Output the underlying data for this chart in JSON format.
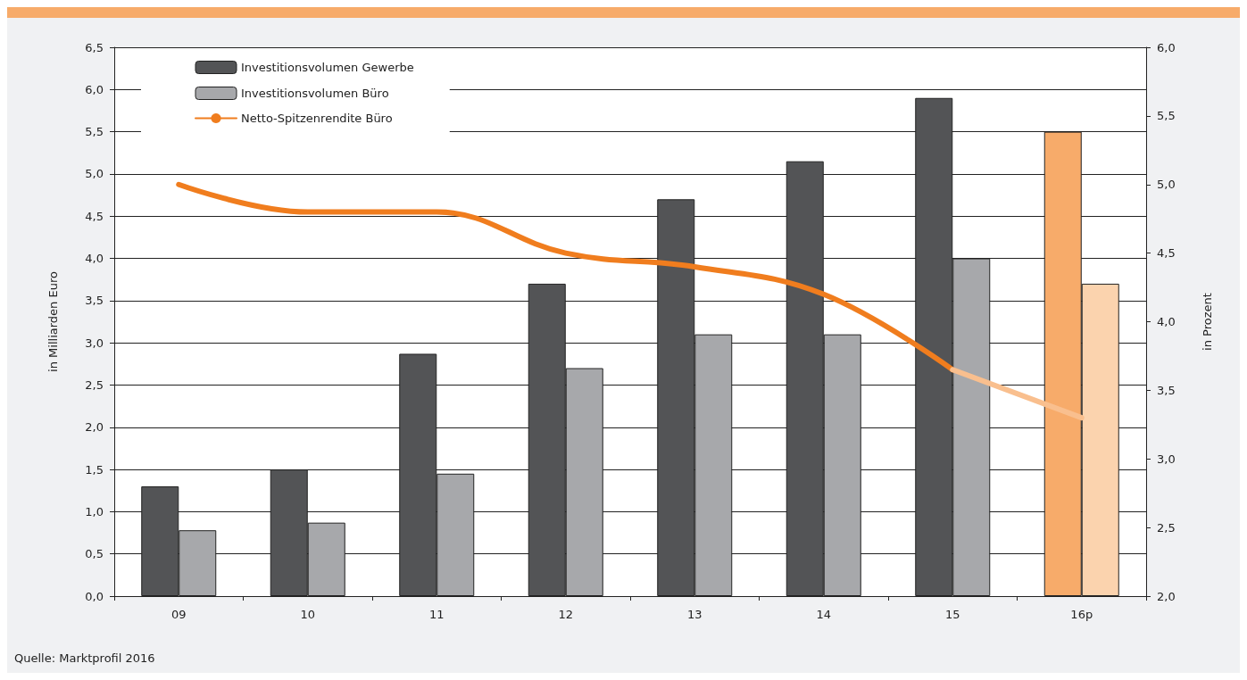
{
  "chart_data": {
    "type": "bar",
    "ylabel": "in Milliarden Euro",
    "y2label": "in Prozent",
    "categories": [
      "09",
      "10",
      "11",
      "12",
      "13",
      "14",
      "15",
      "16p"
    ],
    "series": [
      {
        "name": "Investitionsvolumen Gewerbe",
        "color": "#535456",
        "colors": [
          "#535456",
          "#535456",
          "#535456",
          "#535456",
          "#535456",
          "#535456",
          "#535456",
          "#f7ab6a"
        ],
        "values": [
          1.3,
          1.5,
          2.87,
          3.7,
          4.7,
          5.15,
          5.9,
          5.5
        ]
      },
      {
        "name": "Investitionsvolumen Büro",
        "color": "#a7a8ab",
        "colors": [
          "#a7a8ab",
          "#a7a8ab",
          "#a7a8ab",
          "#a7a8ab",
          "#a7a8ab",
          "#a7a8ab",
          "#a7a8ab",
          "#fbd3ae"
        ],
        "values": [
          0.78,
          0.87,
          1.45,
          2.7,
          3.1,
          3.1,
          4.0,
          3.7
        ]
      },
      {
        "name": "Netto-Spitzenrendite Büro",
        "type": "line",
        "axis": "y2",
        "color": "#f07d1e",
        "values": [
          5.0,
          4.8,
          4.8,
          4.5,
          4.4,
          4.2,
          3.65,
          null
        ]
      },
      {
        "type": "line",
        "axis": "y2",
        "color": "#f9bf8e",
        "values": [
          null,
          null,
          null,
          null,
          null,
          null,
          3.65,
          3.3
        ]
      }
    ],
    "ylim": [
      0,
      6.5
    ],
    "yticks": [
      {
        "value": 0,
        "label": "0,0"
      },
      {
        "value": 0.5,
        "label": "0,5"
      },
      {
        "value": 1,
        "label": "1,0"
      },
      {
        "value": 1.5,
        "label": "1,5"
      },
      {
        "value": 2,
        "label": "2,0"
      },
      {
        "value": 2.5,
        "label": "2,5"
      },
      {
        "value": 3,
        "label": "3,0"
      },
      {
        "value": 3.5,
        "label": "3,5"
      },
      {
        "value": 4,
        "label": "4,0"
      },
      {
        "value": 4.5,
        "label": "4,5"
      },
      {
        "value": 5,
        "label": "5,0"
      },
      {
        "value": 5.5,
        "label": "5,5"
      },
      {
        "value": 6,
        "label": "6,0"
      },
      {
        "value": 6.5,
        "label": "6,5"
      }
    ],
    "y2lim": [
      2,
      6
    ],
    "y2ticks": [
      {
        "value": 2,
        "label": "2,0"
      },
      {
        "value": 2.5,
        "label": "2,5"
      },
      {
        "value": 3,
        "label": "3,0"
      },
      {
        "value": 3.5,
        "label": "3,5"
      },
      {
        "value": 4,
        "label": "4,0"
      },
      {
        "value": 4.5,
        "label": "4,5"
      },
      {
        "value": 5,
        "label": "5,0"
      },
      {
        "value": 5.5,
        "label": "5,5"
      },
      {
        "value": 6,
        "label": "6,0"
      }
    ],
    "grid": "y",
    "legend": "top left",
    "marker": "none",
    "line_style": "solid",
    "annotations": [
      "Quelle: Marktprofil 2016"
    ]
  }
}
